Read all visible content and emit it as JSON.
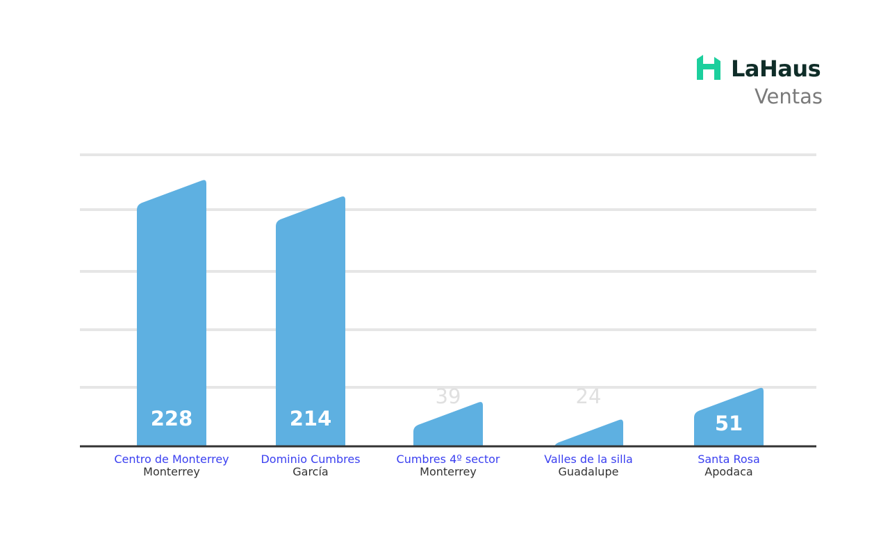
{
  "brand": {
    "name": "LaHaus",
    "subtitle": "Ventas",
    "color_primary": "#0f2d28",
    "color_accent": "#1ccf9d",
    "color_subtitle": "#7a7a7a"
  },
  "colors": {
    "bar": "#5eb0e1",
    "category_label": "#3a3ff0",
    "sub_label": "#333333",
    "value_inside": "#ffffff",
    "value_outside": "#e0e0e0",
    "grid": "#e6e6e6",
    "baseline": "#333333"
  },
  "chart_data": {
    "type": "bar",
    "title": "",
    "xlabel": "",
    "ylabel": "",
    "grid": true,
    "ylim": [
      0,
      250
    ],
    "categories": [
      "Centro de Monterrey",
      "Dominio Cumbres",
      "Cumbres 4º sector",
      "Valles de la silla",
      "Santa Rosa"
    ],
    "subcategories": [
      "Monterrey",
      "García",
      "Monterrey",
      "Guadalupe",
      "Apodaca"
    ],
    "values": [
      228,
      214,
      39,
      24,
      51
    ],
    "value_labels": [
      "228",
      "214",
      "39",
      "24",
      "51"
    ]
  }
}
